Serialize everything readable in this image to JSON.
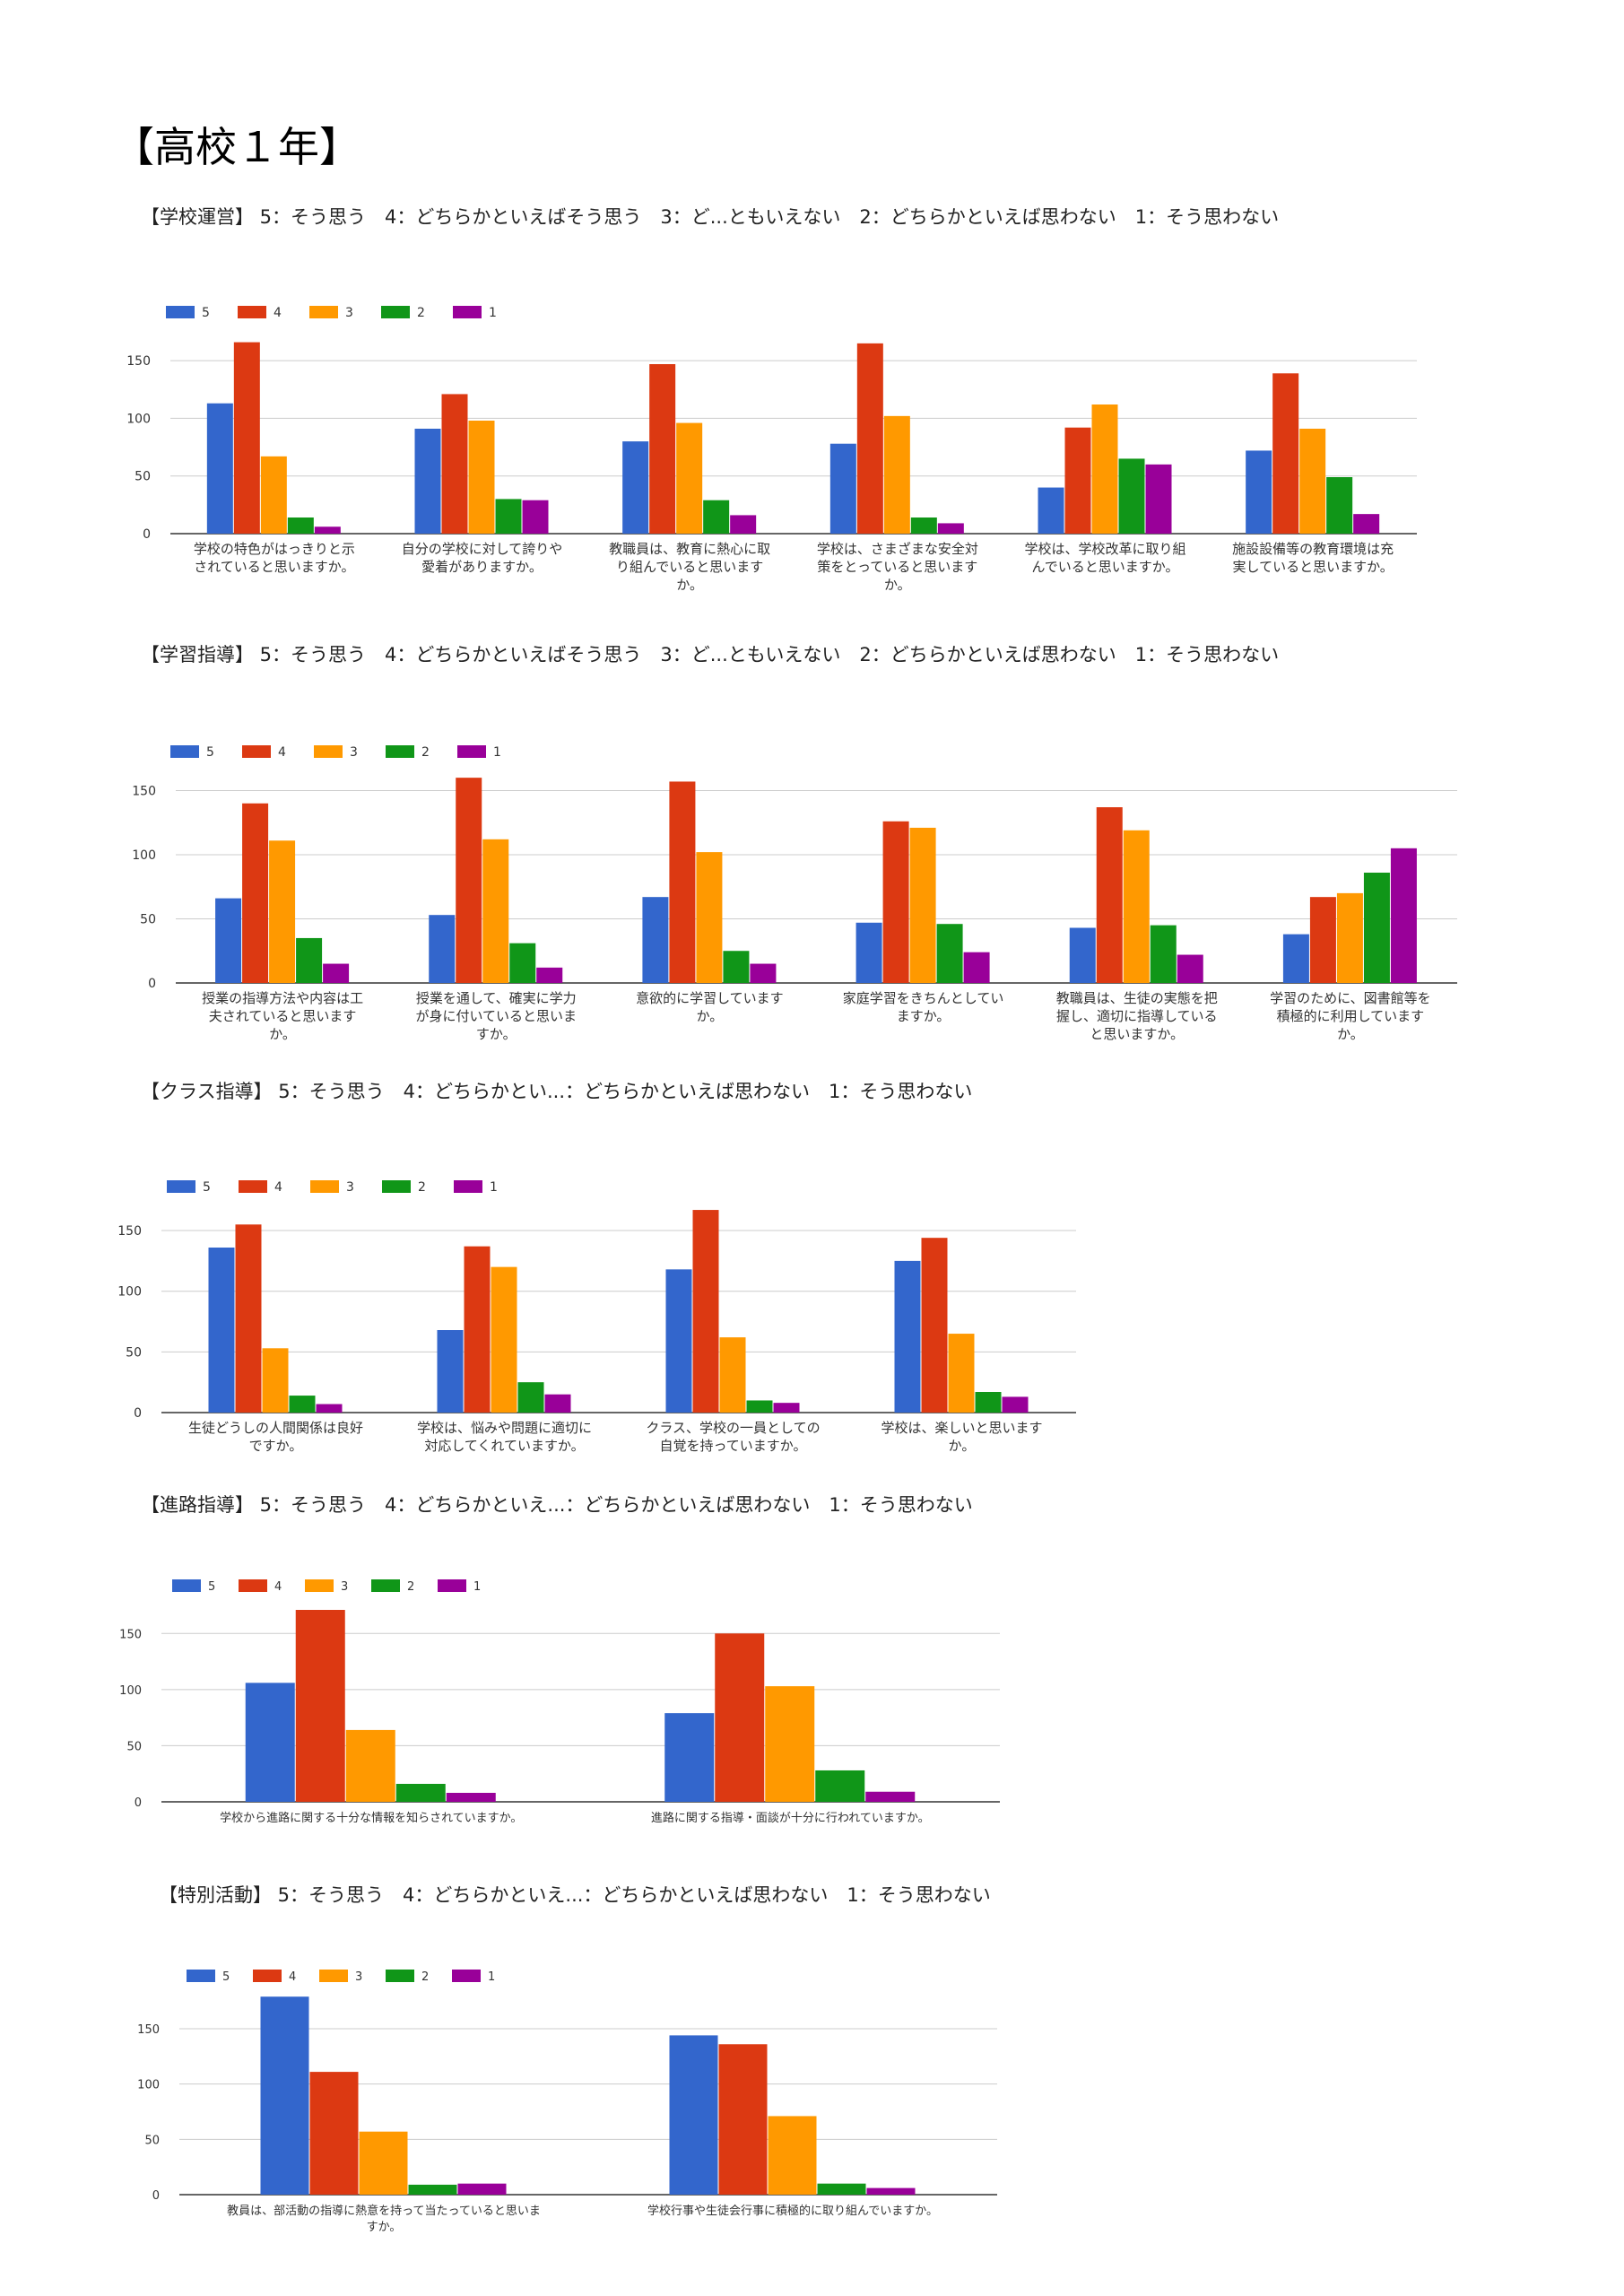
{
  "page": {
    "title": "【高校１年】"
  },
  "colors": {
    "5": "#3366cc",
    "4": "#dc3912",
    "3": "#ff9900",
    "2": "#109618",
    "1": "#990099"
  },
  "sections": [
    {
      "heading": "【学校運営】 5：そう思う　4：どちらかといえばそう思う　3：ど...ともいえない　2：どちらかといえば思わない　1：そう思わない"
    },
    {
      "heading": "【学習指導】 5：そう思う　4：どちらかといえばそう思う　3：ど...ともいえない　2：どちらかといえば思わない　1：そう思わない"
    },
    {
      "heading": "【クラス指導】 5：そう思う　4：どちらかとい...：どちらかといえば思わない　1：そう思わない"
    },
    {
      "heading": "【進路指導】 5：そう思う　4：どちらかといえ...：どちらかといえば思わない　1：そう思わない"
    },
    {
      "heading": "【特別活動】 5：そう思う　4：どちらかといえ...：どちらかといえば思わない　1：そう思わない"
    }
  ],
  "chart_data": [
    {
      "type": "bar",
      "legend": "top-left",
      "grid": true,
      "ylim": [
        0,
        175
      ],
      "yticks": [
        "0",
        "50",
        "100",
        "150"
      ],
      "categories": [
        [
          "学校の特色がはっきりと示",
          "されていると思いますか。"
        ],
        [
          "自分の学校に対して誇りや",
          "愛着がありますか。"
        ],
        [
          "教職員は、教育に熱心に取",
          "り組んでいると思います",
          "か。"
        ],
        [
          "学校は、さまざまな安全対",
          "策をとっていると思います",
          "か。"
        ],
        [
          "学校は、学校改革に取り組",
          "んでいると思いますか。"
        ],
        [
          "施設設備等の教育環境は充",
          "実していると思いますか。"
        ]
      ],
      "series": [
        {
          "name": "5",
          "values": [
            113,
            91,
            80,
            78,
            40,
            72
          ]
        },
        {
          "name": "4",
          "values": [
            166,
            121,
            147,
            165,
            92,
            139
          ]
        },
        {
          "name": "3",
          "values": [
            67,
            98,
            96,
            102,
            112,
            91
          ]
        },
        {
          "name": "2",
          "values": [
            14,
            30,
            29,
            14,
            65,
            49
          ]
        },
        {
          "name": "1",
          "values": [
            6,
            29,
            16,
            9,
            60,
            17
          ]
        }
      ]
    },
    {
      "type": "bar",
      "legend": "top-left",
      "grid": true,
      "ylim": [
        0,
        165
      ],
      "yticks": [
        "0",
        "50",
        "100",
        "150"
      ],
      "categories": [
        [
          "授業の指導方法や内容は工",
          "夫されていると思います",
          "か。"
        ],
        [
          "授業を通して、確実に学力",
          "が身に付いていると思いま",
          "すか。"
        ],
        [
          "意欲的に学習しています",
          "か。"
        ],
        [
          "家庭学習をきちんとしてい",
          "ますか。"
        ],
        [
          "教職員は、生徒の実態を把",
          "握し、適切に指導している",
          "と思いますか。"
        ],
        [
          "学習のために、図書館等を",
          "積極的に利用しています",
          "か。"
        ]
      ],
      "series": [
        {
          "name": "5",
          "values": [
            66,
            53,
            67,
            47,
            43,
            38
          ]
        },
        {
          "name": "4",
          "values": [
            140,
            160,
            157,
            126,
            137,
            67
          ]
        },
        {
          "name": "3",
          "values": [
            111,
            112,
            102,
            121,
            119,
            70
          ]
        },
        {
          "name": "2",
          "values": [
            35,
            31,
            25,
            46,
            45,
            86
          ]
        },
        {
          "name": "1",
          "values": [
            15,
            12,
            15,
            24,
            22,
            105
          ]
        }
      ]
    },
    {
      "type": "bar",
      "legend": "top-left",
      "grid": true,
      "ylim": [
        0,
        170
      ],
      "yticks": [
        "0",
        "50",
        "100",
        "150"
      ],
      "categories": [
        [
          "生徒どうしの人間関係は良好",
          "ですか。"
        ],
        [
          "学校は、悩みや問題に適切に",
          "対応してくれていますか。"
        ],
        [
          "クラス、学校の一員としての",
          "自覚を持っていますか。"
        ],
        [
          "学校は、楽しいと思います",
          "か。"
        ]
      ],
      "series": [
        {
          "name": "5",
          "values": [
            136,
            68,
            118,
            125
          ]
        },
        {
          "name": "4",
          "values": [
            155,
            137,
            167,
            144
          ]
        },
        {
          "name": "3",
          "values": [
            53,
            120,
            62,
            65
          ]
        },
        {
          "name": "2",
          "values": [
            14,
            25,
            10,
            17
          ]
        },
        {
          "name": "1",
          "values": [
            7,
            15,
            8,
            13
          ]
        }
      ]
    },
    {
      "type": "bar",
      "legend": "top-left",
      "grid": true,
      "ylim": [
        0,
        175
      ],
      "yticks": [
        "0",
        "50",
        "100",
        "150"
      ],
      "categories": [
        [
          "学校から進路に関する十分な情報を知らされていますか。"
        ],
        [
          "進路に関する指導・面談が十分に行われていますか。"
        ]
      ],
      "series": [
        {
          "name": "5",
          "values": [
            106,
            79
          ]
        },
        {
          "name": "4",
          "values": [
            171,
            150
          ]
        },
        {
          "name": "3",
          "values": [
            64,
            103
          ]
        },
        {
          "name": "2",
          "values": [
            16,
            28
          ]
        },
        {
          "name": "1",
          "values": [
            8,
            9
          ]
        }
      ]
    },
    {
      "type": "bar",
      "legend": "top-left",
      "grid": true,
      "ylim": [
        0,
        180
      ],
      "yticks": [
        "0",
        "50",
        "100",
        "150"
      ],
      "categories": [
        [
          "教員は、部活動の指導に熱意を持って当たっていると思いま",
          "すか。"
        ],
        [
          "学校行事や生徒会行事に積極的に取り組んでいますか。"
        ]
      ],
      "series": [
        {
          "name": "5",
          "values": [
            179,
            144
          ]
        },
        {
          "name": "4",
          "values": [
            111,
            136
          ]
        },
        {
          "name": "3",
          "values": [
            57,
            71
          ]
        },
        {
          "name": "2",
          "values": [
            9,
            10
          ]
        },
        {
          "name": "1",
          "values": [
            10,
            6
          ]
        }
      ]
    }
  ]
}
